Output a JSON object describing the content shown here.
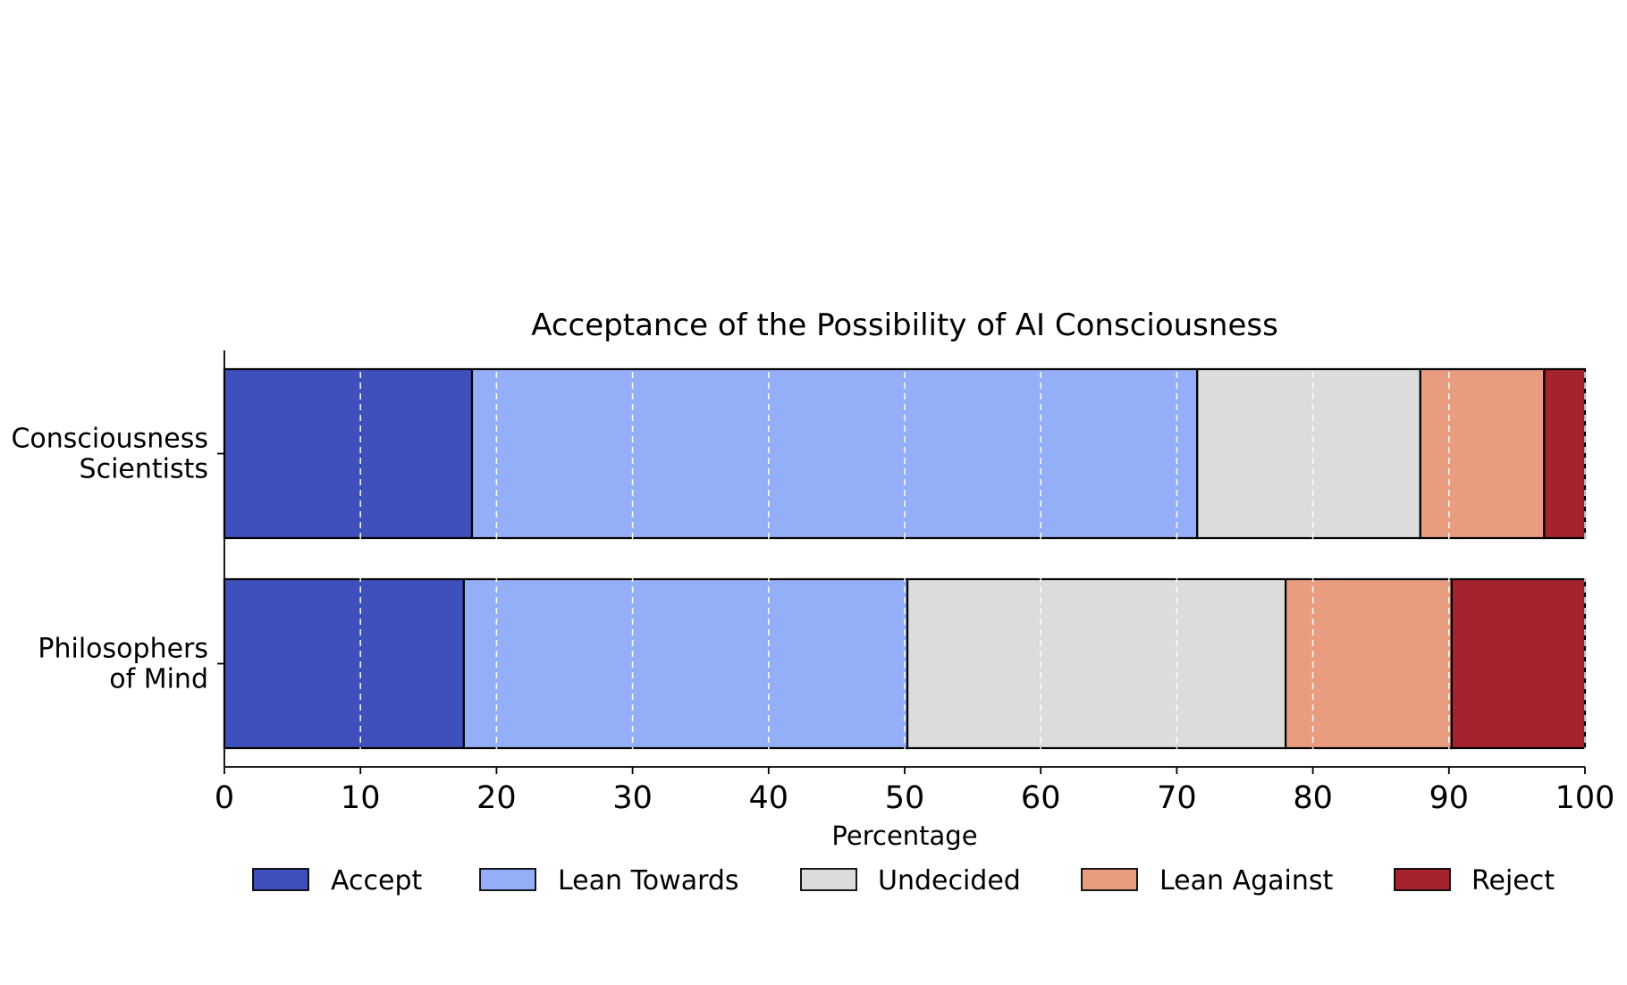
{
  "chart_data": {
    "type": "bar",
    "orientation": "horizontal",
    "stacked": true,
    "title": "Acceptance of the Possibility of AI Consciousness",
    "xlabel": "Percentage",
    "ylabel": "",
    "xlim": [
      0,
      100
    ],
    "xticks": [
      0,
      10,
      20,
      30,
      40,
      50,
      60,
      70,
      80,
      90,
      100
    ],
    "grid": "vertical dashed white lines at x ticks",
    "legend_position": "bottom",
    "categories": [
      {
        "lines": [
          "Consciousness",
          "Scientists"
        ]
      },
      {
        "lines": [
          "Philosophers",
          "of Mind"
        ]
      }
    ],
    "series": [
      {
        "name": "Accept",
        "color": "#3f4fbb",
        "values": [
          18.2,
          17.6
        ]
      },
      {
        "name": "Lean Towards",
        "color": "#94aff7",
        "values": [
          53.3,
          32.6
        ]
      },
      {
        "name": "Undecided",
        "color": "#dcdcdc",
        "values": [
          16.4,
          27.8
        ]
      },
      {
        "name": "Lean Against",
        "color": "#e89d80",
        "values": [
          9.1,
          12.2
        ]
      },
      {
        "name": "Reject",
        "color": "#a4232e",
        "values": [
          3.0,
          9.8
        ]
      }
    ]
  }
}
